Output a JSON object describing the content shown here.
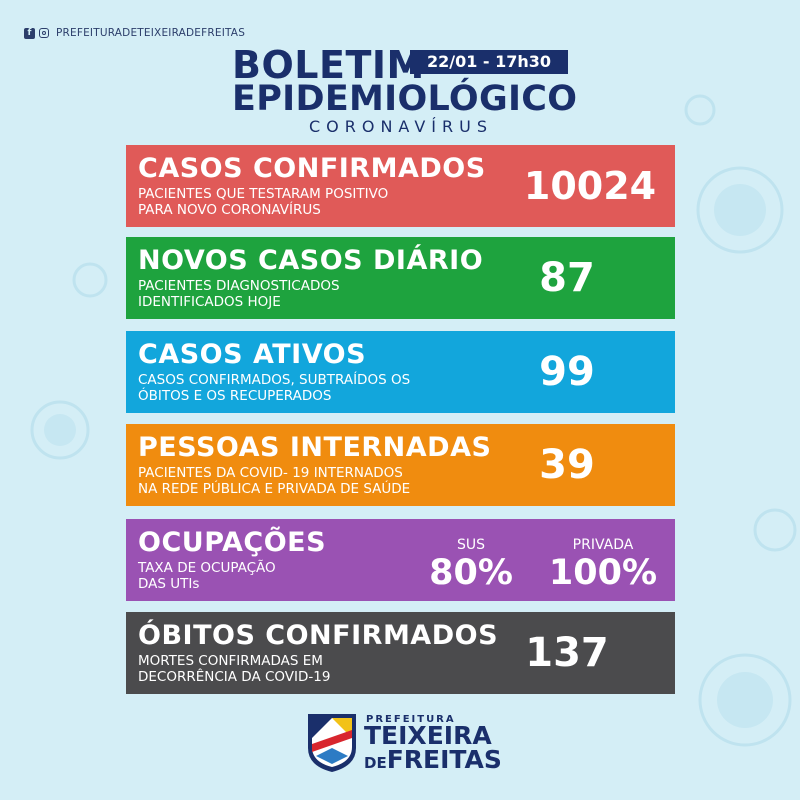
{
  "header": {
    "social_handle": "PREFEITURADETEIXEIRADEFREITAS",
    "title_line1": "BOLETIM",
    "date": "22/01 - 17h30",
    "title_line2": "EPIDEMIOLÓGICO",
    "subtitle": "CORONAVÍRUS"
  },
  "panels": [
    {
      "heading": "CASOS CONFIRMADOS",
      "description": "PACIENTES QUE TESTARAM POSITIVO\nPARA NOVO CORONAVÍRUS",
      "value": "10024",
      "color": "#e05a58"
    },
    {
      "heading": "NOVOS CASOS DIÁRIO",
      "description": "PACIENTES DIAGNOSTICADOS\nIDENTIFICADOS HOJE",
      "value": "87",
      "color": "#1ea33e"
    },
    {
      "heading": "CASOS ATIVOS",
      "description": "CASOS CONFIRMADOS, SUBTRAÍDOS OS\nÓBITOS E OS RECUPERADOS",
      "value": "99",
      "color": "#12a6dc"
    },
    {
      "heading": "PESSOAS INTERNADAS",
      "description": "PACIENTES DA COVID- 19 INTERNADOS\nNA REDE PÚBLICA E PRIVADA DE SAÚDE",
      "value": "39",
      "color": "#f08c0f"
    },
    {
      "heading": "OCUPAÇÕES",
      "description": "TAXA DE OCUPAÇÃO\nDAS UTIs",
      "sus_label": "SUS",
      "sus_value": "80%",
      "private_label": "PRIVADA",
      "private_value": "100%",
      "color": "#9a52b3"
    },
    {
      "heading": "ÓBITOS CONFIRMADOS",
      "description": "MORTES CONFIRMADAS EM\nDECORRÊNCIA DA COVID-19",
      "value": "137",
      "color": "#4b4b4d"
    }
  ],
  "logo": {
    "line1": "PREFEITURA",
    "line2": "TEIXEIRA",
    "line3_small": "DE",
    "line3": "FREITAS"
  },
  "icons": [
    "facebook-icon",
    "instagram-icon",
    "shield-icon",
    "virus-icon"
  ],
  "colors": {
    "background": "#d4eef6",
    "navy": "#1a2f6b"
  }
}
